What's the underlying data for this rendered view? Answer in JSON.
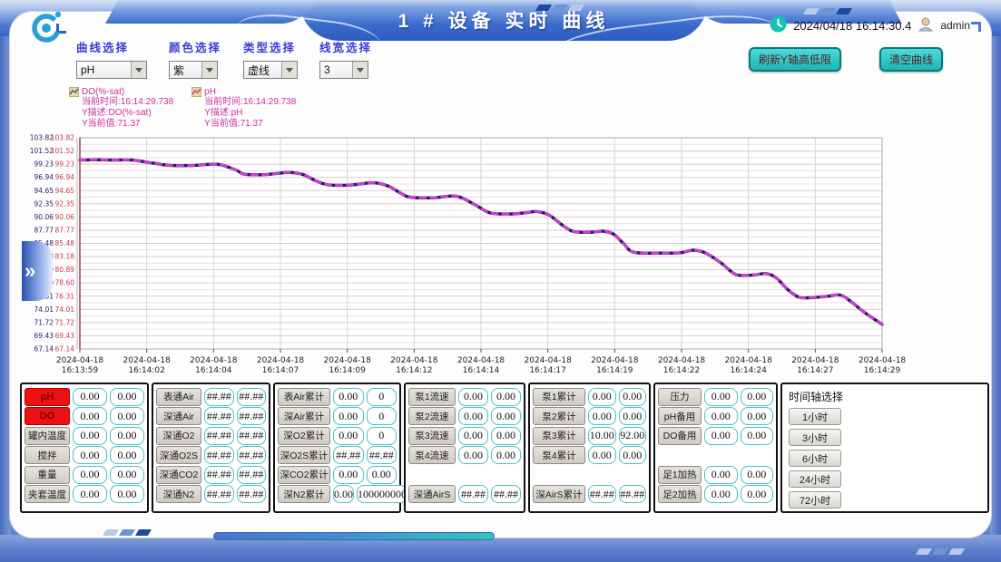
{
  "window": {
    "title": "1 # 设备 实时 曲线",
    "datetime": "2024/04/18 16:14:30.4",
    "user": "admin"
  },
  "controls": {
    "selectors": [
      {
        "label": "曲线选择",
        "value": "pH"
      },
      {
        "label": "颜色选择",
        "value": "紫"
      },
      {
        "label": "类型选择",
        "value": "虚线"
      },
      {
        "label": "线宽选择",
        "value": "3"
      }
    ]
  },
  "actions": {
    "refresh_y_axis": "刷新Y轴高低限",
    "clear_curve": "清空曲线"
  },
  "legend": [
    {
      "name": "DO(%-sat)",
      "lines": [
        "当前时间:16:14:29.738",
        "Y描述:DO(%-sat)",
        "Y当前值:71.37"
      ]
    },
    {
      "name": "pH",
      "lines": [
        "当前时间:16:14:29.738",
        "Y描述:pH",
        "Y当前值:71.37"
      ]
    }
  ],
  "chart_data": {
    "type": "line",
    "title": "",
    "xlabel": "",
    "ylabel": "",
    "x_date": "2024-04-18",
    "x_times": [
      "16:13:59",
      "16:14:02",
      "16:14:04",
      "16:14:07",
      "16:14:09",
      "16:14:12",
      "16:14:14",
      "16:14:17",
      "16:14:19",
      "16:14:22",
      "16:14:24",
      "16:14:27",
      "16:14:29"
    ],
    "y_ticks": [
      103.82,
      101.52,
      99.23,
      96.94,
      94.65,
      92.35,
      90.06,
      87.77,
      85.48,
      83.18,
      80.89,
      78.6,
      76.31,
      74.01,
      71.72,
      69.43,
      67.14
    ],
    "ylim": [
      67.14,
      103.82
    ],
    "grid": true,
    "legend_position": "top-left",
    "series": [
      {
        "name": "DO(%-sat)",
        "color": "#241668",
        "style": "solid",
        "width": 3,
        "current_value": 71.37
      },
      {
        "name": "pH",
        "color": "#cf3fcf",
        "style": "dashed",
        "width": 3,
        "current_value": 71.37
      }
    ],
    "points": [
      [
        0.0,
        99.95
      ],
      [
        0.02,
        100.0
      ],
      [
        0.045,
        99.95
      ],
      [
        0.065,
        99.95
      ],
      [
        0.09,
        99.45
      ],
      [
        0.11,
        99.05
      ],
      [
        0.14,
        99.0
      ],
      [
        0.16,
        99.2
      ],
      [
        0.175,
        99.15
      ],
      [
        0.195,
        98.2
      ],
      [
        0.205,
        97.5
      ],
      [
        0.23,
        97.42
      ],
      [
        0.25,
        97.7
      ],
      [
        0.262,
        97.8
      ],
      [
        0.278,
        97.45
      ],
      [
        0.295,
        96.3
      ],
      [
        0.31,
        95.65
      ],
      [
        0.335,
        95.6
      ],
      [
        0.355,
        95.9
      ],
      [
        0.368,
        96.0
      ],
      [
        0.385,
        95.4
      ],
      [
        0.4,
        94.2
      ],
      [
        0.412,
        93.5
      ],
      [
        0.44,
        93.4
      ],
      [
        0.462,
        93.7
      ],
      [
        0.475,
        93.45
      ],
      [
        0.495,
        92.0
      ],
      [
        0.512,
        90.75
      ],
      [
        0.54,
        90.6
      ],
      [
        0.558,
        90.85
      ],
      [
        0.57,
        91.0
      ],
      [
        0.585,
        90.4
      ],
      [
        0.6,
        88.8
      ],
      [
        0.615,
        87.55
      ],
      [
        0.638,
        87.42
      ],
      [
        0.652,
        87.6
      ],
      [
        0.665,
        87.1
      ],
      [
        0.678,
        85.4
      ],
      [
        0.69,
        83.95
      ],
      [
        0.72,
        83.8
      ],
      [
        0.748,
        83.85
      ],
      [
        0.765,
        84.3
      ],
      [
        0.78,
        83.8
      ],
      [
        0.8,
        82.0
      ],
      [
        0.818,
        80.05
      ],
      [
        0.84,
        80.0
      ],
      [
        0.855,
        80.25
      ],
      [
        0.868,
        79.5
      ],
      [
        0.882,
        77.5
      ],
      [
        0.896,
        76.15
      ],
      [
        0.912,
        76.05
      ],
      [
        0.932,
        76.3
      ],
      [
        0.948,
        76.5
      ],
      [
        0.96,
        75.5
      ],
      [
        0.978,
        73.5
      ],
      [
        1.0,
        71.4
      ]
    ]
  },
  "table": {
    "sections": [
      {
        "rows": [
          {
            "label": "pH",
            "v1": "0.00",
            "v2": "0.00",
            "alarm": true
          },
          {
            "label": "DO",
            "v1": "0.00",
            "v2": "0.00",
            "alarm": true
          },
          {
            "label": "罐内温度",
            "v1": "0.00",
            "v2": "0.00"
          },
          {
            "label": "搅拌",
            "v1": "0.00",
            "v2": "0.00"
          },
          {
            "label": "重量",
            "v1": "0.00",
            "v2": "0.00"
          },
          {
            "label": "夹套温度",
            "v1": "0.00",
            "v2": "0.00"
          }
        ]
      },
      {
        "rows": [
          {
            "label": "表通Air",
            "v1": "##.##",
            "v2": "##.##"
          },
          {
            "label": "深通Air",
            "v1": "##.##",
            "v2": "##.##"
          },
          {
            "label": "深通O2",
            "v1": "##.##",
            "v2": "##.##"
          },
          {
            "label": "深通O2S",
            "v1": "##.##",
            "v2": "##.##"
          },
          {
            "label": "深通CO2",
            "v1": "##.##",
            "v2": "##.##"
          },
          {
            "label": "深通N2",
            "v1": "##.##",
            "v2": "##.##"
          }
        ]
      },
      {
        "rows": [
          {
            "label": "表Air累计",
            "v1": "0.00",
            "v2": "0"
          },
          {
            "label": "深Air累计",
            "v1": "0.00",
            "v2": "0"
          },
          {
            "label": "深O2累计",
            "v1": "0.00",
            "v2": "0"
          },
          {
            "label": "深O2S累计",
            "v1": "##.##",
            "v2": "##.##"
          },
          {
            "label": "深CO2累计",
            "v1": "0.00",
            "v2": "0.00"
          },
          {
            "label": "深N2累计",
            "v1": "0.00",
            "v2": "100000000"
          }
        ]
      },
      {
        "rows": [
          {
            "label": "泵1流速",
            "v1": "0.00",
            "v2": "0.00"
          },
          {
            "label": "泵2流速",
            "v1": "0.00",
            "v2": "0.00"
          },
          {
            "label": "泵3流速",
            "v1": "0.00",
            "v2": "0.00"
          },
          {
            "label": "泵4流速",
            "v1": "0.00",
            "v2": "0.00"
          },
          null,
          {
            "label": "深通AirS",
            "v1": "##.##",
            "v2": "##.##"
          }
        ]
      },
      {
        "rows": [
          {
            "label": "泵1累计",
            "v1": "0.00",
            "v2": "0.00"
          },
          {
            "label": "泵2累计",
            "v1": "0.00",
            "v2": "0.00"
          },
          {
            "label": "泵3累计",
            "v1": "10.00",
            "v2": "92.00"
          },
          {
            "label": "泵4累计",
            "v1": "0.00",
            "v2": "0.00"
          },
          null,
          {
            "label": "深AirS累计",
            "v1": "##.##",
            "v2": "##.##"
          }
        ]
      },
      {
        "rows": [
          {
            "label": "压力",
            "v1": "0.00",
            "v2": "0.00"
          },
          {
            "label": "pH备用",
            "v1": "0.00",
            "v2": "0.00"
          },
          {
            "label": "DO备用",
            "v1": "0.00",
            "v2": "0.00"
          },
          null,
          {
            "label": "足1加热",
            "v1": "0.00",
            "v2": "0.00"
          },
          {
            "label": "足2加热",
            "v1": "0.00",
            "v2": "0.00"
          }
        ]
      }
    ]
  },
  "time_axis": {
    "title": "时间轴选择",
    "options": [
      "1小时",
      "3小时",
      "6小时",
      "24小时",
      "72小时"
    ]
  },
  "colors": {
    "accent_teal": "#1fb5b5",
    "alarm_red": "#ee1111",
    "curve_solid": "#241668",
    "curve_dash": "#cf3fcf",
    "legend_text": "#cc2f9e",
    "header_blue": "#2f5fc0"
  },
  "decor": {
    "chevron": "»"
  }
}
